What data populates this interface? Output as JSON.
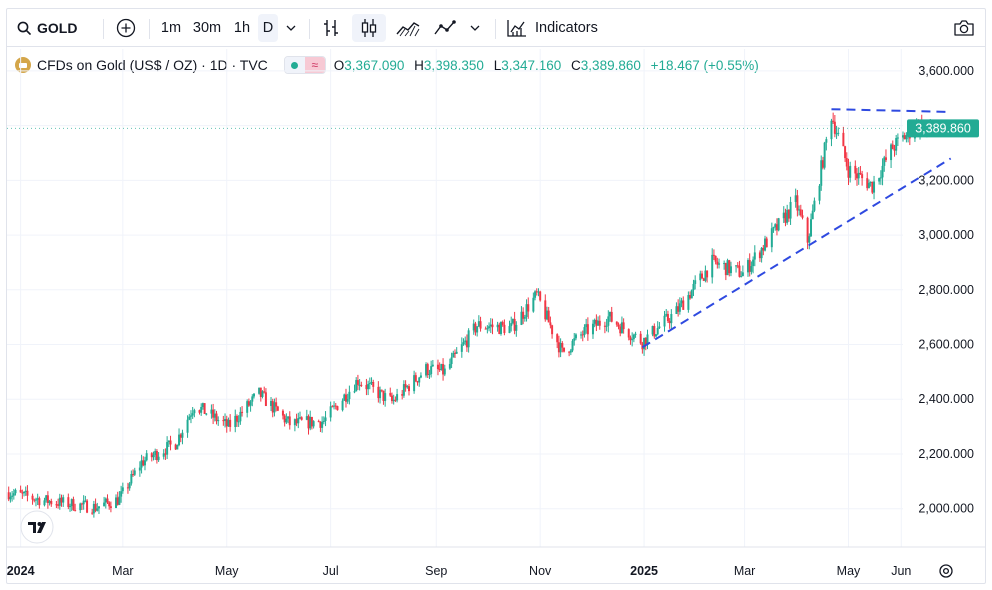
{
  "toolbar": {
    "symbol": "GOLD",
    "intervals": [
      "1m",
      "30m",
      "1h",
      "D"
    ],
    "indicators_label": "Indicators"
  },
  "legend": {
    "title": "CFDs on Gold (US$ / OZ) · 1D · TVC",
    "o_label": "O",
    "o_value": "3,367.090",
    "h_label": "H",
    "h_value": "3,398.350",
    "l_label": "L",
    "l_value": "3,347.160",
    "c_label": "C",
    "c_value": "3,389.860",
    "change": "+18.467 (+0.55%)"
  },
  "colors": {
    "up": "#22ab94",
    "down": "#f23645",
    "trend": "#2f4ae0",
    "price_tag": "#22ab94"
  },
  "chart_data": {
    "type": "candlestick",
    "y_ticks": [
      "3,600.000",
      "3,400.000",
      "3,200.000",
      "3,000.000",
      "2,800.000",
      "2,600.000",
      "2,400.000",
      "2,200.000",
      "2,000.000"
    ],
    "y_tick_values": [
      3600,
      3400,
      3200,
      3000,
      2800,
      2600,
      2400,
      2200,
      2000
    ],
    "ylim": [
      1860,
      3680
    ],
    "x_ticks": [
      "2024",
      "Mar",
      "May",
      "Jul",
      "Sep",
      "Nov",
      "2025",
      "Mar",
      "May",
      "Jun"
    ],
    "x_tick_dates": [
      "2024-01-01",
      "2024-03-01",
      "2024-05-01",
      "2024-07-01",
      "2024-09-01",
      "2024-11-01",
      "2025-01-01",
      "2025-03-01",
      "2025-05-01",
      "2025-06-01"
    ],
    "x_range": [
      "2023-12-24",
      "2025-06-02"
    ],
    "last_price_label": "3,389.860",
    "last_price": 3389.86,
    "trend_path": [
      [
        "2023-12-24",
        2060
      ],
      [
        "2024-01-15",
        2030
      ],
      [
        "2024-02-14",
        2005
      ],
      [
        "2024-02-28",
        2035
      ],
      [
        "2024-03-12",
        2170
      ],
      [
        "2024-04-01",
        2240
      ],
      [
        "2024-04-12",
        2380
      ],
      [
        "2024-05-02",
        2300
      ],
      [
        "2024-05-20",
        2420
      ],
      [
        "2024-06-07",
        2310
      ],
      [
        "2024-06-27",
        2320
      ],
      [
        "2024-07-17",
        2470
      ],
      [
        "2024-08-06",
        2390
      ],
      [
        "2024-08-26",
        2510
      ],
      [
        "2024-09-06",
        2500
      ],
      [
        "2024-09-25",
        2670
      ],
      [
        "2024-10-15",
        2660
      ],
      [
        "2024-10-30",
        2780
      ],
      [
        "2024-11-14",
        2570
      ],
      [
        "2024-11-26",
        2640
      ],
      [
        "2024-12-11",
        2700
      ],
      [
        "2024-12-31",
        2610
      ],
      [
        "2025-01-20",
        2720
      ],
      [
        "2025-02-10",
        2900
      ],
      [
        "2025-02-28",
        2860
      ],
      [
        "2025-03-17",
        3000
      ],
      [
        "2025-03-31",
        3120
      ],
      [
        "2025-04-07",
        2980
      ],
      [
        "2025-04-21",
        3440
      ],
      [
        "2025-05-01",
        3240
      ],
      [
        "2025-05-15",
        3180
      ],
      [
        "2025-05-27",
        3320
      ],
      [
        "2025-06-10",
        3400
      ],
      [
        "2025-06-20",
        3380
      ]
    ],
    "trendlines": [
      {
        "style": "dashed",
        "from": [
          "2024-12-31",
          2590
        ],
        "to": [
          "2025-06-30",
          3280
        ]
      },
      {
        "style": "dashed",
        "from": [
          "2025-04-21",
          3460
        ],
        "to": [
          "2025-06-30",
          3450
        ]
      }
    ]
  }
}
